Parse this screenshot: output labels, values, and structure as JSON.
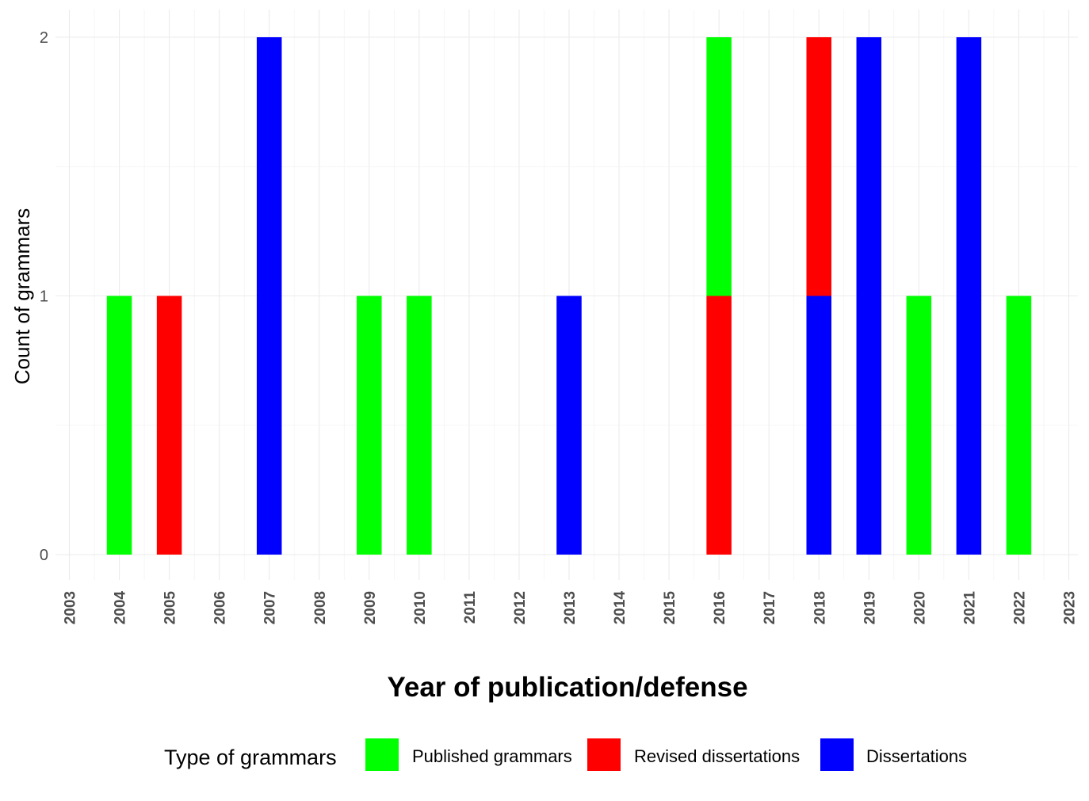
{
  "chart_data": {
    "type": "bar",
    "stacked": true,
    "xlabel": "Year of publication/defense",
    "ylabel": "Count of grammars",
    "ylim": [
      0,
      2
    ],
    "yticks": [
      0,
      1,
      2
    ],
    "grid": true,
    "categories": [
      "2003",
      "2004",
      "2005",
      "2006",
      "2007",
      "2008",
      "2009",
      "2010",
      "2011",
      "2012",
      "2013",
      "2014",
      "2015",
      "2016",
      "2017",
      "2018",
      "2019",
      "2020",
      "2021",
      "2022",
      "2023"
    ],
    "legend": {
      "title": "Type of grammars",
      "position": "bottom"
    },
    "series": [
      {
        "name": "Published grammars",
        "color": "#00ff00",
        "values": [
          0,
          1,
          0,
          0,
          0,
          0,
          1,
          1,
          0,
          0,
          0,
          0,
          0,
          1,
          0,
          0,
          0,
          1,
          0,
          1,
          0
        ]
      },
      {
        "name": "Revised dissertations",
        "color": "#ff0000",
        "values": [
          0,
          0,
          1,
          0,
          0,
          0,
          0,
          0,
          0,
          0,
          0,
          0,
          0,
          1,
          0,
          1,
          0,
          0,
          0,
          0,
          0
        ]
      },
      {
        "name": "Dissertations",
        "color": "#0000ff",
        "values": [
          0,
          0,
          0,
          0,
          2,
          0,
          0,
          0,
          0,
          0,
          1,
          0,
          0,
          0,
          0,
          1,
          2,
          0,
          2,
          0,
          0
        ]
      }
    ]
  }
}
